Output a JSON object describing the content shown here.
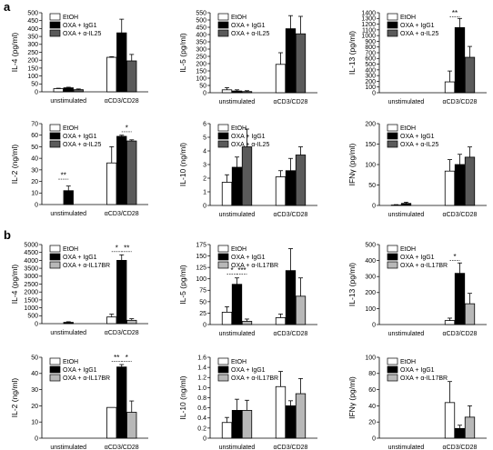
{
  "figure": {
    "panel_labels": [
      "a",
      "b"
    ],
    "colors": {
      "white": "#ffffff",
      "black": "#000000",
      "dark_gray": "#5a5a5a",
      "light_gray": "#b8b8b8"
    }
  },
  "chart_data": [
    {
      "type": "bar",
      "ylabel": "IL-4 (pg/ml)",
      "yticks": [
        "0",
        "50",
        "100",
        "150",
        "200",
        "250",
        "300",
        "350",
        "400",
        "450",
        "500"
      ],
      "ylim": [
        0,
        550
      ],
      "categories": [
        "unstimulated",
        "αCD3/CD28"
      ],
      "series": [
        {
          "name": "EtOH",
          "color": "#ffffff",
          "values": [
            22,
            240
          ],
          "err": [
            3,
            4
          ]
        },
        {
          "name": "OXA + IgG1",
          "color": "#000000",
          "values": [
            28,
            410
          ],
          "err": [
            4,
            95
          ]
        },
        {
          "name": "OXA + α-IL25",
          "color": "#5a5a5a",
          "values": [
            15,
            215
          ],
          "err": [
            5,
            45
          ]
        }
      ],
      "sig": []
    },
    {
      "type": "bar",
      "ylabel": "IL-5 (pg/ml)",
      "yticks": [
        "0",
        "50",
        "100",
        "150",
        "200",
        "250",
        "300",
        "350",
        "400",
        "450",
        "500",
        "550"
      ],
      "ylim": [
        0,
        550
      ],
      "categories": [
        "unstimulated",
        "αCD3/CD28"
      ],
      "series": [
        {
          "name": "EtOH",
          "color": "#ffffff",
          "values": [
            20,
            195
          ],
          "err": [
            15,
            80
          ]
        },
        {
          "name": "OXA + IgG1",
          "color": "#000000",
          "values": [
            12,
            440
          ],
          "err": [
            8,
            90
          ]
        },
        {
          "name": "OXA + α-IL25",
          "color": "#5a5a5a",
          "values": [
            8,
            405
          ],
          "err": [
            6,
            120
          ]
        }
      ],
      "sig": []
    },
    {
      "type": "bar",
      "ylabel": "IL-13 (pg/ml)",
      "yticks": [
        "0",
        "100",
        "200",
        "300",
        "400",
        "500",
        "600",
        "700",
        "800",
        "900",
        "1000",
        "1100",
        "1200",
        "1300",
        "1400"
      ],
      "ylim": [
        0,
        1400
      ],
      "categories": [
        "unstimulated",
        "αCD3/CD28"
      ],
      "series": [
        {
          "name": "EtOH",
          "color": "#ffffff",
          "values": [
            0,
            190
          ],
          "err": [
            0,
            190
          ]
        },
        {
          "name": "OXA + IgG1",
          "color": "#000000",
          "values": [
            0,
            1140
          ],
          "err": [
            0,
            160
          ]
        },
        {
          "name": "OXA + α-IL25",
          "color": "#5a5a5a",
          "values": [
            0,
            620
          ],
          "err": [
            0,
            190
          ]
        }
      ],
      "sig": [
        {
          "cat": 1,
          "from": 0,
          "to": 1,
          "y": 1330,
          "label": "**"
        }
      ]
    },
    {
      "type": "bar",
      "ylabel": "IL-2 (ng/ml)",
      "yticks": [
        "0",
        "10",
        "20",
        "30",
        "40",
        "50",
        "60",
        "70"
      ],
      "ylim": [
        0,
        70
      ],
      "categories": [
        "unstimulated",
        "αCD3/CD28"
      ],
      "series": [
        {
          "name": "EtOH",
          "color": "#ffffff",
          "values": [
            0,
            36
          ],
          "err": [
            0,
            14
          ]
        },
        {
          "name": "OXA + IgG1",
          "color": "#000000",
          "values": [
            12,
            59
          ],
          "err": [
            4,
            1
          ]
        },
        {
          "name": "OXA + α-IL25",
          "color": "#5a5a5a",
          "values": [
            0,
            55
          ],
          "err": [
            0,
            1
          ]
        }
      ],
      "sig": [
        {
          "cat": 0,
          "from": 0,
          "to": 1,
          "y": 22,
          "label": "**"
        },
        {
          "cat": 1,
          "from": 1,
          "to": 2,
          "y": 63,
          "label": "*"
        }
      ]
    },
    {
      "type": "bar",
      "ylabel": "IL-10 (ng/ml)",
      "yticks": [
        "0",
        "1",
        "2",
        "3",
        "4",
        "5",
        "6"
      ],
      "ylim": [
        0,
        6
      ],
      "categories": [
        "unstimulated",
        "αCD3/CD28"
      ],
      "series": [
        {
          "name": "EtOH",
          "color": "#ffffff",
          "values": [
            1.7,
            2.1
          ],
          "err": [
            0.55,
            0.45
          ]
        },
        {
          "name": "OXA + IgG1",
          "color": "#000000",
          "values": [
            2.8,
            2.55
          ],
          "err": [
            0.75,
            0.9
          ]
        },
        {
          "name": "OXA + α-IL25",
          "color": "#5a5a5a",
          "values": [
            4.3,
            3.7
          ],
          "err": [
            1.3,
            0.6
          ]
        }
      ],
      "sig": []
    },
    {
      "type": "bar",
      "ylabel": "IFNγ (pg/ml)",
      "yticks": [
        "0",
        "50",
        "100",
        "150",
        "200"
      ],
      "ylim": [
        0,
        200
      ],
      "categories": [
        "unstimulated",
        "αCD3/CD28"
      ],
      "series": [
        {
          "name": "EtOH",
          "color": "#ffffff",
          "values": [
            1,
            84
          ],
          "err": [
            1,
            28
          ]
        },
        {
          "name": "OXA + IgG1",
          "color": "#000000",
          "values": [
            5,
            100
          ],
          "err": [
            3,
            25
          ]
        },
        {
          "name": "OXA + α-IL25",
          "color": "#5a5a5a",
          "values": [
            0,
            118
          ],
          "err": [
            0,
            25
          ]
        }
      ],
      "sig": []
    },
    {
      "type": "bar",
      "ylabel": "IL-4 (pg/ml)",
      "yticks": [
        "0",
        "500",
        "1000",
        "1500",
        "2000",
        "2500",
        "3000",
        "3500",
        "4000",
        "4500",
        "5000"
      ],
      "ylim": [
        0,
        5000
      ],
      "categories": [
        "unstimulated",
        "αCD3/CD28"
      ],
      "series": [
        {
          "name": "EtOH",
          "color": "#ffffff",
          "values": [
            0,
            420
          ],
          "err": [
            0,
            180
          ]
        },
        {
          "name": "OXA + IgG1",
          "color": "#000000",
          "values": [
            80,
            4000
          ],
          "err": [
            40,
            350
          ]
        },
        {
          "name": "OXA + α-IL17BR",
          "color": "#b8b8b8",
          "values": [
            0,
            210
          ],
          "err": [
            0,
            100
          ]
        }
      ],
      "sig": [
        {
          "cat": 1,
          "from": 0,
          "to": 1,
          "y": 4550,
          "label": "*"
        },
        {
          "cat": 1,
          "from": 1,
          "to": 2,
          "y": 4550,
          "label": "**"
        }
      ]
    },
    {
      "type": "bar",
      "ylabel": "IL-5 (pg/ml)",
      "yticks": [
        "0",
        "25",
        "50",
        "75",
        "100",
        "125",
        "150",
        "175"
      ],
      "ylim": [
        0,
        175
      ],
      "categories": [
        "unstimulated",
        "αCD3/CD28"
      ],
      "series": [
        {
          "name": "EtOH",
          "color": "#ffffff",
          "values": [
            27,
            15
          ],
          "err": [
            12,
            8
          ]
        },
        {
          "name": "OXA + IgG1",
          "color": "#000000",
          "values": [
            88,
            118
          ],
          "err": [
            14,
            48
          ]
        },
        {
          "name": "OXA + α-IL17BR",
          "color": "#b8b8b8",
          "values": [
            7,
            62
          ],
          "err": [
            5,
            40
          ]
        }
      ],
      "sig": [
        {
          "cat": 0,
          "from": 0,
          "to": 1,
          "y": 110,
          "label": "*"
        },
        {
          "cat": 0,
          "from": 1,
          "to": 2,
          "y": 110,
          "label": "***"
        }
      ]
    },
    {
      "type": "bar",
      "ylabel": "IL-13 (pg/ml)",
      "yticks": [
        "0",
        "100",
        "200",
        "300",
        "400",
        "500"
      ],
      "ylim": [
        0,
        500
      ],
      "categories": [
        "unstimulated",
        "αCD3/CD28"
      ],
      "series": [
        {
          "name": "EtOH",
          "color": "#ffffff",
          "values": [
            0,
            25
          ],
          "err": [
            0,
            15
          ]
        },
        {
          "name": "OXA + IgG1",
          "color": "#000000",
          "values": [
            0,
            320
          ],
          "err": [
            0,
            65
          ]
        },
        {
          "name": "OXA + α-IL17BR",
          "color": "#b8b8b8",
          "values": [
            0,
            130
          ],
          "err": [
            0,
            65
          ]
        }
      ],
      "sig": [
        {
          "cat": 1,
          "from": 0,
          "to": 1,
          "y": 400,
          "label": "*"
        }
      ]
    },
    {
      "type": "bar",
      "ylabel": "IL-2 (ng/ml)",
      "yticks": [
        "0",
        "10",
        "20",
        "30",
        "40",
        "50"
      ],
      "ylim": [
        0,
        50
      ],
      "categories": [
        "unstimulated",
        "αCD3/CD28"
      ],
      "series": [
        {
          "name": "EtOH",
          "color": "#ffffff",
          "values": [
            0,
            19
          ],
          "err": [
            0,
            0
          ]
        },
        {
          "name": "OXA + IgG1",
          "color": "#000000",
          "values": [
            0,
            44
          ],
          "err": [
            0,
            1.5
          ]
        },
        {
          "name": "OXA + α-IL17BR",
          "color": "#b8b8b8",
          "values": [
            0,
            16
          ],
          "err": [
            0,
            7
          ]
        }
      ],
      "sig": [
        {
          "cat": 1,
          "from": 0,
          "to": 1,
          "y": 47.5,
          "label": "**"
        },
        {
          "cat": 1,
          "from": 1,
          "to": 2,
          "y": 47.5,
          "label": "*"
        }
      ]
    },
    {
      "type": "bar",
      "ylabel": "IL-10 (ng/ml)",
      "yticks": [
        "0",
        "0.2",
        "0.4",
        "0.6",
        "0.8",
        "1.0",
        "1.2",
        "1.4",
        "1.6"
      ],
      "ylim": [
        0,
        1.6
      ],
      "categories": [
        "unstimulated",
        "αCD3/CD28"
      ],
      "series": [
        {
          "name": "EtOH",
          "color": "#ffffff",
          "values": [
            0.31,
            1.02
          ],
          "err": [
            0.1,
            0.3
          ]
        },
        {
          "name": "OXA + IgG1",
          "color": "#000000",
          "values": [
            0.55,
            0.64
          ],
          "err": [
            0.22,
            0.1
          ]
        },
        {
          "name": "OXA + α-IL17BR",
          "color": "#b8b8b8",
          "values": [
            0.55,
            0.88
          ],
          "err": [
            0.2,
            0.3
          ]
        }
      ],
      "sig": []
    },
    {
      "type": "bar",
      "ylabel": "IFNγ (pg/ml)",
      "yticks": [
        "0",
        "20",
        "40",
        "60",
        "80",
        "100"
      ],
      "ylim": [
        0,
        100
      ],
      "categories": [
        "unstimulated",
        "αCD3/CD28"
      ],
      "series": [
        {
          "name": "EtOH",
          "color": "#ffffff",
          "values": [
            0,
            44
          ],
          "err": [
            0,
            26
          ]
        },
        {
          "name": "OXA + IgG1",
          "color": "#000000",
          "values": [
            0,
            12
          ],
          "err": [
            0,
            4
          ]
        },
        {
          "name": "OXA + α-IL17BR",
          "color": "#b8b8b8",
          "values": [
            0,
            26
          ],
          "err": [
            0,
            14
          ]
        }
      ],
      "sig": []
    }
  ]
}
